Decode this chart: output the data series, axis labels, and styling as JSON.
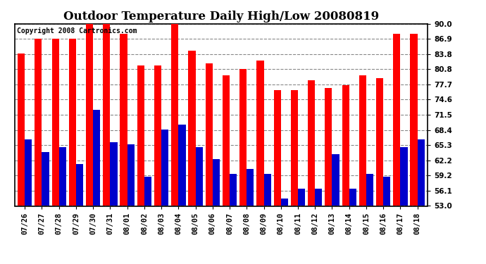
{
  "title": "Outdoor Temperature Daily High/Low 20080819",
  "copyright": "Copyright 2008 Cartronics.com",
  "dates": [
    "07/26",
    "07/27",
    "07/28",
    "07/29",
    "07/30",
    "07/31",
    "08/01",
    "08/02",
    "08/03",
    "08/04",
    "08/05",
    "08/06",
    "08/07",
    "08/08",
    "08/09",
    "08/10",
    "08/11",
    "08/12",
    "08/13",
    "08/14",
    "08/15",
    "08/16",
    "08/17",
    "08/18"
  ],
  "highs": [
    84.0,
    87.0,
    87.0,
    87.0,
    90.0,
    90.0,
    88.0,
    81.5,
    81.5,
    90.0,
    84.5,
    82.0,
    79.5,
    80.8,
    82.5,
    76.5,
    76.5,
    78.5,
    77.0,
    77.5,
    79.5,
    79.0,
    88.0,
    88.0
  ],
  "lows": [
    66.5,
    64.0,
    65.0,
    61.5,
    72.5,
    66.0,
    65.5,
    59.0,
    68.5,
    69.5,
    65.0,
    62.5,
    59.5,
    60.5,
    59.5,
    54.5,
    56.5,
    56.5,
    63.5,
    56.5,
    59.5,
    59.0,
    65.0,
    66.5
  ],
  "high_color": "#ff0000",
  "low_color": "#0000cc",
  "bg_color": "#ffffff",
  "plot_bg": "#ffffff",
  "grid_color": "#888888",
  "ymin": 53.0,
  "ymax": 90.0,
  "yticks": [
    53.0,
    56.1,
    59.2,
    62.2,
    65.3,
    68.4,
    71.5,
    74.6,
    77.7,
    80.8,
    83.8,
    86.9,
    90.0
  ],
  "bar_width": 0.42,
  "title_fontsize": 12,
  "tick_fontsize": 7.5,
  "copyright_fontsize": 7
}
